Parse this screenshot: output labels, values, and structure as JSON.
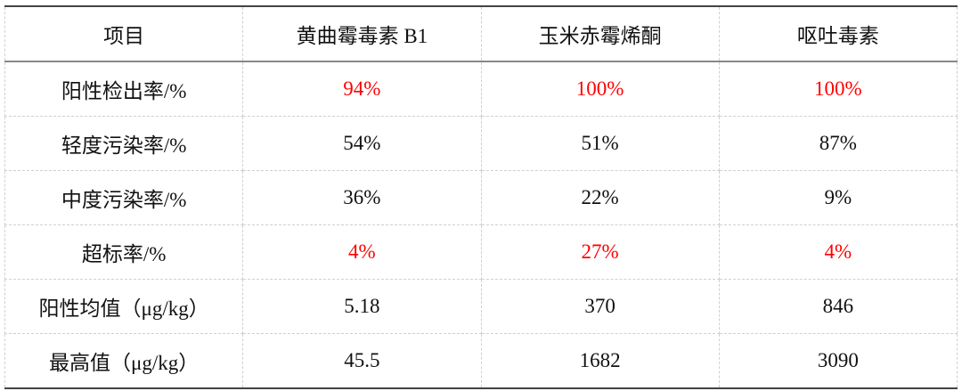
{
  "highlight_color": "#ff0000",
  "headers": [
    "项目",
    "黄曲霉毒素 B1",
    "玉米赤霉烯酮",
    "呕吐毒素"
  ],
  "rows": [
    {
      "label": "阳性检出率/%",
      "values": [
        "94%",
        "100%",
        "100%"
      ],
      "highlight": true
    },
    {
      "label": "轻度污染率/%",
      "values": [
        "54%",
        "51%",
        "87%"
      ],
      "highlight": false
    },
    {
      "label": "中度污染率/%",
      "values": [
        "36%",
        "22%",
        "9%"
      ],
      "highlight": false
    },
    {
      "label": "超标率/%",
      "values": [
        "4%",
        "27%",
        "4%"
      ],
      "highlight": true
    },
    {
      "label": "阳性均值（μg/kg）",
      "values": [
        "5.18",
        "370",
        "846"
      ],
      "highlight": false
    },
    {
      "label": "最高值（μg/kg）",
      "values": [
        "45.5",
        "1682",
        "3090"
      ],
      "highlight": false
    }
  ]
}
